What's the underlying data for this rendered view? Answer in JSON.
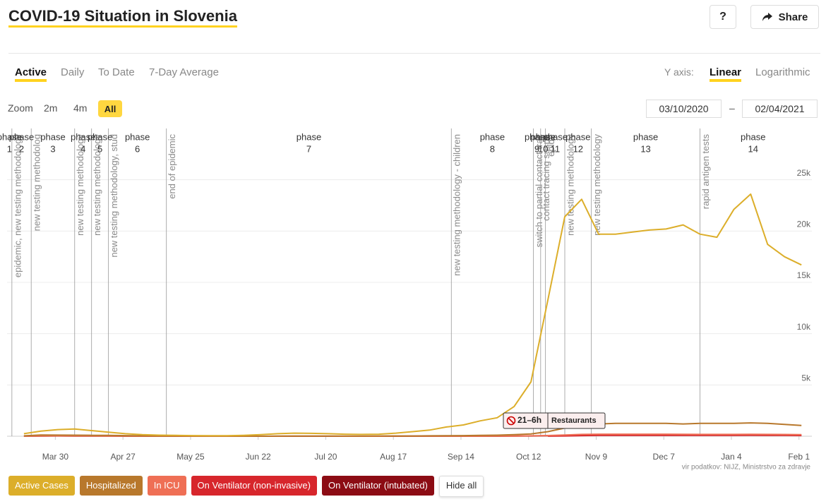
{
  "header": {
    "title": "COVID-19 Situation in Slovenia",
    "help": "?",
    "share": "Share"
  },
  "controls": {
    "tabs": [
      "Active",
      "Daily",
      "To Date",
      "7-Day Average"
    ],
    "y_axis_label": "Y axis:",
    "scales": [
      "Linear",
      "Logarithmic"
    ],
    "zoom_label": "Zoom",
    "zoom_options": [
      "2m",
      "4m",
      "All"
    ],
    "date_from": "03/10/2020",
    "date_separator": "–",
    "date_to": "02/04/2021",
    "hide_all": "Hide all"
  },
  "badge": {
    "hours": "21–6h",
    "label": "Restaurants"
  },
  "source": "vir podatkov: NIJZ, Ministrstvo za zdravje",
  "chart_data": {
    "type": "line",
    "log_scale": false,
    "grid": true,
    "xlim": [
      "2020-03-10",
      "2021-02-04"
    ],
    "xticks": [
      {
        "value": "2020-03-30",
        "label": "Mar 30"
      },
      {
        "value": "2020-04-27",
        "label": "Apr 27"
      },
      {
        "value": "2020-05-25",
        "label": "May 25"
      },
      {
        "value": "2020-06-22",
        "label": "Jun 22"
      },
      {
        "value": "2020-07-20",
        "label": "Jul 20"
      },
      {
        "value": "2020-08-17",
        "label": "Aug 17"
      },
      {
        "value": "2020-09-14",
        "label": "Sep 14"
      },
      {
        "value": "2020-10-12",
        "label": "Oct 12"
      },
      {
        "value": "2020-11-09",
        "label": "Nov 9"
      },
      {
        "value": "2020-12-07",
        "label": "Dec 7"
      },
      {
        "value": "2021-01-04",
        "label": "Jan 4"
      },
      {
        "value": "2021-02-01",
        "label": "Feb 1"
      }
    ],
    "ylim": [
      0,
      30000
    ],
    "yticks": [
      {
        "value": 5000,
        "label": "5k"
      },
      {
        "value": 10000,
        "label": "10k"
      },
      {
        "value": 15000,
        "label": "15k"
      },
      {
        "value": 20000,
        "label": "20k"
      },
      {
        "value": 25000,
        "label": "25k"
      }
    ],
    "x": [
      "2020-03-10",
      "2020-03-17",
      "2020-03-24",
      "2020-03-31",
      "2020-04-07",
      "2020-04-14",
      "2020-04-21",
      "2020-04-28",
      "2020-05-05",
      "2020-05-12",
      "2020-05-19",
      "2020-05-26",
      "2020-06-02",
      "2020-06-09",
      "2020-06-16",
      "2020-06-23",
      "2020-06-30",
      "2020-07-07",
      "2020-07-14",
      "2020-07-21",
      "2020-07-28",
      "2020-08-04",
      "2020-08-11",
      "2020-08-18",
      "2020-08-25",
      "2020-09-01",
      "2020-09-08",
      "2020-09-15",
      "2020-09-22",
      "2020-09-29",
      "2020-10-06",
      "2020-10-13",
      "2020-10-20",
      "2020-10-27",
      "2020-11-03",
      "2020-11-10",
      "2020-11-17",
      "2020-11-24",
      "2020-12-01",
      "2020-12-08",
      "2020-12-15",
      "2020-12-22",
      "2020-12-29",
      "2021-01-05",
      "2021-01-12",
      "2021-01-19",
      "2021-01-26",
      "2021-02-02"
    ],
    "series": [
      {
        "name": "Active Cases",
        "color": "#dcae2a",
        "values": [
          null,
          250,
          500,
          650,
          700,
          550,
          400,
          250,
          150,
          100,
          80,
          60,
          50,
          50,
          80,
          150,
          250,
          300,
          280,
          250,
          200,
          180,
          200,
          300,
          450,
          600,
          900,
          1100,
          1500,
          1800,
          2900,
          5300,
          13300,
          21400,
          23100,
          19700,
          19700,
          19900,
          20100,
          20200,
          20600,
          19700,
          19400,
          22100,
          23600,
          18700,
          17500,
          16700
        ]
      },
      {
        "name": "Hospitalized",
        "color": "#b8782c",
        "values": [
          null,
          40,
          120,
          110,
          100,
          90,
          80,
          60,
          40,
          30,
          25,
          20,
          15,
          12,
          10,
          10,
          15,
          20,
          20,
          20,
          20,
          20,
          25,
          30,
          30,
          40,
          50,
          60,
          80,
          100,
          150,
          220,
          450,
          800,
          1050,
          1200,
          1250,
          1250,
          1250,
          1250,
          1200,
          1250,
          1250,
          1250,
          1300,
          1250,
          1150,
          1050
        ]
      },
      {
        "name": "In ICU",
        "color": "#ef6f55",
        "values": [
          null,
          10,
          30,
          35,
          30,
          25,
          20,
          15,
          8,
          5,
          4,
          3,
          3,
          2,
          2,
          2,
          3,
          4,
          4,
          4,
          3,
          3,
          3,
          4,
          5,
          5,
          6,
          8,
          10,
          15,
          20,
          40,
          70,
          120,
          180,
          200,
          200,
          200,
          200,
          200,
          190,
          180,
          180,
          180,
          190,
          180,
          170,
          150
        ]
      },
      {
        "name": "On Ventilator (non-invasive)",
        "color": "#d7262c",
        "values": [
          null,
          null,
          null,
          null,
          null,
          null,
          null,
          null,
          null,
          null,
          null,
          null,
          null,
          null,
          null,
          null,
          null,
          null,
          null,
          null,
          null,
          null,
          null,
          null,
          null,
          null,
          null,
          null,
          null,
          null,
          null,
          null,
          10,
          30,
          60,
          80,
          90,
          90,
          90,
          90,
          85,
          80,
          80,
          85,
          95,
          90,
          80,
          70
        ]
      },
      {
        "name": "On Ventilator (intubated)",
        "color": "#8c0c14",
        "values": [
          null,
          5,
          20,
          25,
          22,
          18,
          15,
          10,
          6,
          4,
          3,
          2,
          2,
          1,
          1,
          1,
          2,
          3,
          3,
          3,
          2,
          2,
          2,
          3,
          4,
          4,
          5,
          6,
          8,
          10,
          15,
          25,
          45,
          80,
          120,
          140,
          140,
          140,
          140,
          140,
          130,
          125,
          125,
          125,
          130,
          125,
          115,
          100
        ]
      }
    ],
    "markers": [
      {
        "date": "2020-03-12",
        "label": "epidemic, new testing methodology"
      },
      {
        "date": "2020-03-20",
        "label": "new testing methodolog"
      },
      {
        "date": "2020-04-07",
        "label": "new testing methodology"
      },
      {
        "date": "2020-04-14",
        "label": "new testing methodology"
      },
      {
        "date": "2020-04-21",
        "label": "new testing methodology, stud"
      },
      {
        "date": "2020-05-15",
        "label": "end of epidemic"
      },
      {
        "date": "2020-09-10",
        "label": "new testing methodology - children"
      },
      {
        "date": "2020-10-14",
        "label": "switch to partial contact trac"
      },
      {
        "date": "2020-10-17",
        "label": "contact tracing suspe"
      },
      {
        "date": "2020-10-19",
        "label": "epide"
      },
      {
        "date": "2020-10-27",
        "label": "new testing methodology"
      },
      {
        "date": "2020-11-07",
        "label": "new testing methodology"
      },
      {
        "date": "2020-12-22",
        "label": "rapid antigen tests"
      }
    ],
    "phases": [
      {
        "start": "2020-03-10",
        "label": "phase",
        "number": "1"
      },
      {
        "start": "2020-03-12",
        "label": "phase",
        "number": "2"
      },
      {
        "start": "2020-03-20",
        "label": "phase",
        "number": "3"
      },
      {
        "start": "2020-04-07",
        "label": "phase",
        "number": "4"
      },
      {
        "start": "2020-04-14",
        "label": "phase",
        "number": "5"
      },
      {
        "start": "2020-04-21",
        "label": "phase",
        "number": "6"
      },
      {
        "start": "2020-05-15",
        "label": "phase",
        "number": "7"
      },
      {
        "start": "2020-09-10",
        "label": "phase",
        "number": "8"
      },
      {
        "start": "2020-10-14",
        "label": "phase",
        "number": "9"
      },
      {
        "start": "2020-10-17",
        "label": "phase",
        "number": "10"
      },
      {
        "start": "2020-10-19",
        "label": "phase",
        "number": "11"
      },
      {
        "start": "2020-10-27",
        "label": "phase",
        "number": "12"
      },
      {
        "start": "2020-11-07",
        "label": "phase",
        "number": "13"
      },
      {
        "start": "2020-12-22",
        "label": "phase",
        "number": "14"
      }
    ]
  }
}
